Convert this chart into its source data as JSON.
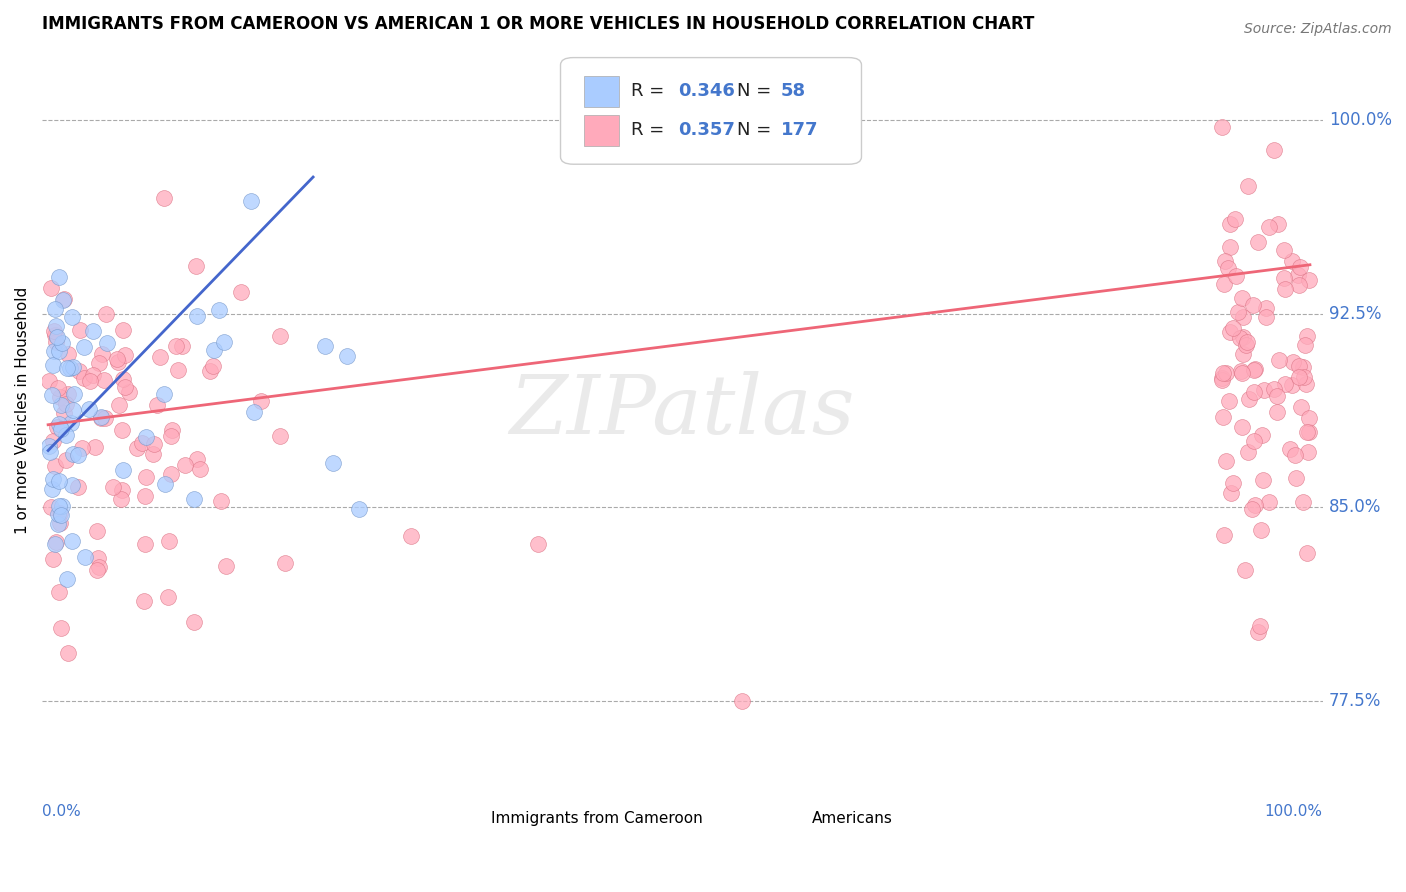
{
  "title": "IMMIGRANTS FROM CAMEROON VS AMERICAN 1 OR MORE VEHICLES IN HOUSEHOLD CORRELATION CHART",
  "source": "Source: ZipAtlas.com",
  "ylabel": "1 or more Vehicles in Household",
  "yticks": [
    0.775,
    0.85,
    0.925,
    1.0
  ],
  "ytick_labels": [
    "77.5%",
    "85.0%",
    "92.5%",
    "100.0%"
  ],
  "xlim": [
    -0.005,
    1.01
  ],
  "ylim": [
    0.745,
    1.03
  ],
  "blue_color": "#aaccff",
  "blue_edge_color": "#7799cc",
  "pink_color": "#ffaabb",
  "pink_edge_color": "#dd7788",
  "blue_line_color": "#4466cc",
  "pink_line_color": "#ee6677",
  "watermark_color": "#dddddd",
  "label_color": "#4477cc",
  "blue_R": 0.346,
  "blue_N": 58,
  "pink_R": 0.357,
  "pink_N": 177,
  "blue_trend_x": [
    0.0,
    0.21
  ],
  "blue_trend_y": [
    0.872,
    0.978
  ],
  "pink_trend_x": [
    0.0,
    1.0
  ],
  "pink_trend_y": [
    0.882,
    0.944
  ]
}
